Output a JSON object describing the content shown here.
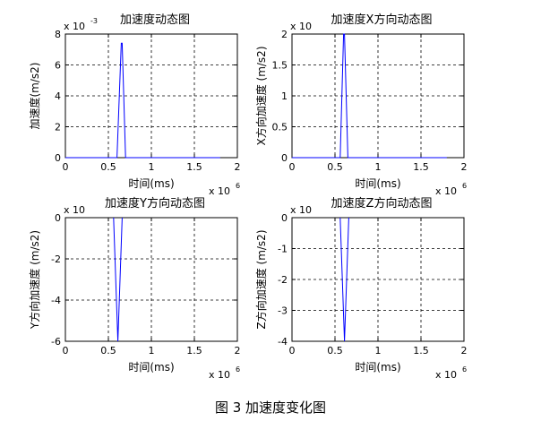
{
  "figure_caption": "图 3  加速度变化图",
  "chart_data": [
    {
      "type": "line",
      "title": "加速度动态图",
      "xlabel": "时间(ms)",
      "ylabel": "加速度(m/s2)",
      "xlim": [
        0,
        2000000
      ],
      "ylim": [
        0,
        0.008
      ],
      "x_multiplier": "x 10",
      "x_exponent": "6",
      "y_multiplier": "x 10",
      "y_exponent": "-3",
      "xticks": [
        0,
        0.5,
        1,
        1.5,
        2
      ],
      "xtick_labels": [
        "0",
        "0.5",
        "1",
        "1.5",
        "2"
      ],
      "yticks": [
        0,
        2,
        4,
        6,
        8
      ],
      "ytick_labels": [
        "0",
        "2",
        "4",
        "6",
        "8"
      ],
      "grid": true,
      "line_color": "#0000ff",
      "series": [
        {
          "x": [
            0,
            600000,
            650000,
            660000,
            700000,
            1800000
          ],
          "y": [
            0,
            0,
            0.0074,
            0.0074,
            0,
            0
          ]
        }
      ]
    },
    {
      "type": "line",
      "title": "加速度X方向动态图",
      "xlabel": "时间(ms)",
      "ylabel": "X方向加速度 (m/s2)",
      "xlim": [
        0,
        2000000
      ],
      "ylim": [
        0,
        0.002
      ],
      "x_multiplier": "x 10",
      "x_exponent": "6",
      "y_multiplier": "x 10",
      "y_exponent": "",
      "xticks": [
        0,
        0.5,
        1,
        1.5,
        2
      ],
      "xtick_labels": [
        "0",
        "0.5",
        "1",
        "1.5",
        "2"
      ],
      "yticks": [
        0,
        0.5,
        1,
        1.5,
        2
      ],
      "ytick_labels": [
        "0",
        "0.5",
        "1",
        "1.5",
        "2"
      ],
      "grid": true,
      "line_color": "#0000ff",
      "series": [
        {
          "x": [
            0,
            560000,
            600000,
            610000,
            650000,
            1800000
          ],
          "y": [
            0,
            0,
            0.002,
            0.002,
            0,
            0
          ]
        }
      ]
    },
    {
      "type": "line",
      "title": "加速度Y方向动态图",
      "xlabel": "时间(ms)",
      "ylabel": "Y方向加速度 (m/s2)",
      "xlim": [
        0,
        2000000
      ],
      "ylim": [
        -0.006,
        0
      ],
      "x_multiplier": "x 10",
      "x_exponent": "6",
      "y_multiplier": "x 10",
      "y_exponent": "",
      "xticks": [
        0,
        0.5,
        1,
        1.5,
        2
      ],
      "xtick_labels": [
        "0",
        "0.5",
        "1",
        "1.5",
        "2"
      ],
      "yticks": [
        0,
        -2,
        -4,
        -6
      ],
      "ytick_labels": [
        "0",
        "-2",
        "-4",
        "-6"
      ],
      "grid": true,
      "line_color": "#0000ff",
      "series": [
        {
          "x": [
            560000,
            610000,
            660000
          ],
          "y": [
            0,
            -0.006,
            0
          ]
        }
      ]
    },
    {
      "type": "line",
      "title": "加速度Z方向动态图",
      "xlabel": "时间(ms)",
      "ylabel": "Z方向加速度 (m/s2)",
      "xlim": [
        0,
        2000000
      ],
      "ylim": [
        -0.004,
        0
      ],
      "x_multiplier": "x 10",
      "x_exponent": "6",
      "y_multiplier": "x 10",
      "y_exponent": "",
      "xticks": [
        0,
        0.5,
        1,
        1.5,
        2
      ],
      "xtick_labels": [
        "0",
        "0.5",
        "1",
        "1.5",
        "2"
      ],
      "yticks": [
        0,
        -1,
        -2,
        -3,
        -4
      ],
      "ytick_labels": [
        "0",
        "-1",
        "-2",
        "-3",
        "-4"
      ],
      "grid": true,
      "line_color": "#0000ff",
      "series": [
        {
          "x": [
            560000,
            610000,
            660000
          ],
          "y": [
            0,
            -0.004,
            0
          ]
        }
      ]
    }
  ]
}
